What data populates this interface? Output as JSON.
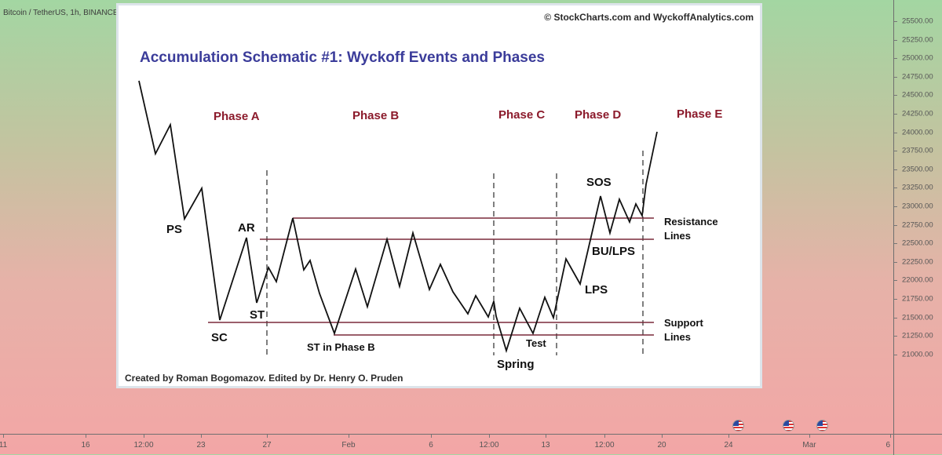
{
  "symbol_info": "Bitcoin / TetherUS, 1h, BINANCE",
  "price_axis": [
    "25500.00",
    "25250.00",
    "25000.00",
    "24750.00",
    "24500.00",
    "24250.00",
    "24000.00",
    "23750.00",
    "23500.00",
    "23250.00",
    "23000.00",
    "22750.00",
    "22500.00",
    "22250.00",
    "22000.00",
    "21750.00",
    "21500.00",
    "21250.00",
    "21000.00"
  ],
  "time_axis": [
    "11",
    "16",
    "12:00",
    "23",
    "27",
    "Feb",
    "6",
    "12:00",
    "13",
    "12:00",
    "20",
    "24",
    "Mar",
    "6"
  ],
  "schematic": {
    "copyright": "© StockCharts.com and WyckoffAnalytics.com",
    "title": "Accumulation Schematic #1: Wyckoff Events and Phases",
    "phases": [
      "Phase A",
      "Phase B",
      "Phase C",
      "Phase D",
      "Phase E"
    ],
    "labels": {
      "ps": "PS",
      "sc": "SC",
      "ar": "AR",
      "st": "ST",
      "st_phase_b": "ST in Phase B",
      "spring": "Spring",
      "test": "Test",
      "lps": "LPS",
      "bu_lps": "BU/LPS",
      "sos": "SOS",
      "resistance_1": "Resistance",
      "resistance_2": "Lines",
      "support_1": "Support",
      "support_2": "Lines"
    },
    "credit": "Created by Roman Bogomazov. Edited by Dr. Henry O. Pruden"
  },
  "colors": {
    "title": "#3b3c9a",
    "phase": "#8b1a2b",
    "level_line": "#7a2a3a"
  }
}
